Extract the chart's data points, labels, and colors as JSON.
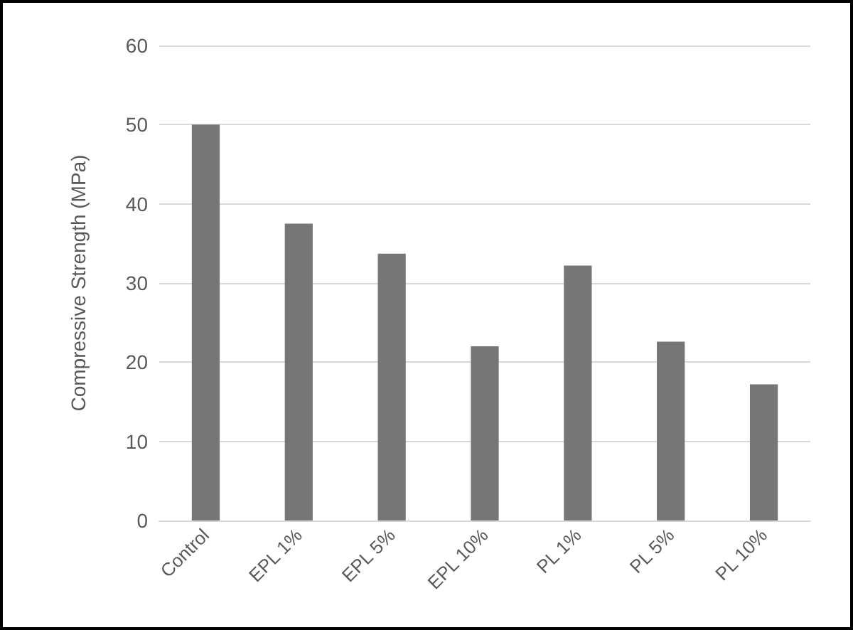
{
  "chart_data": {
    "type": "bar",
    "ylabel": "Compressive Strength (MPa)",
    "categories": [
      "Control",
      "EPL 1%",
      "EPL 5%",
      "EPL 10%",
      "PL 1%",
      "PL 5%",
      "PL 10%"
    ],
    "values": [
      50,
      37.5,
      33.7,
      22,
      32.2,
      22.6,
      17.2
    ],
    "color": "#767676",
    "ylim": [
      0,
      60
    ],
    "yticks": [
      0,
      10,
      20,
      30,
      40,
      50,
      60
    ],
    "grid": "y"
  }
}
